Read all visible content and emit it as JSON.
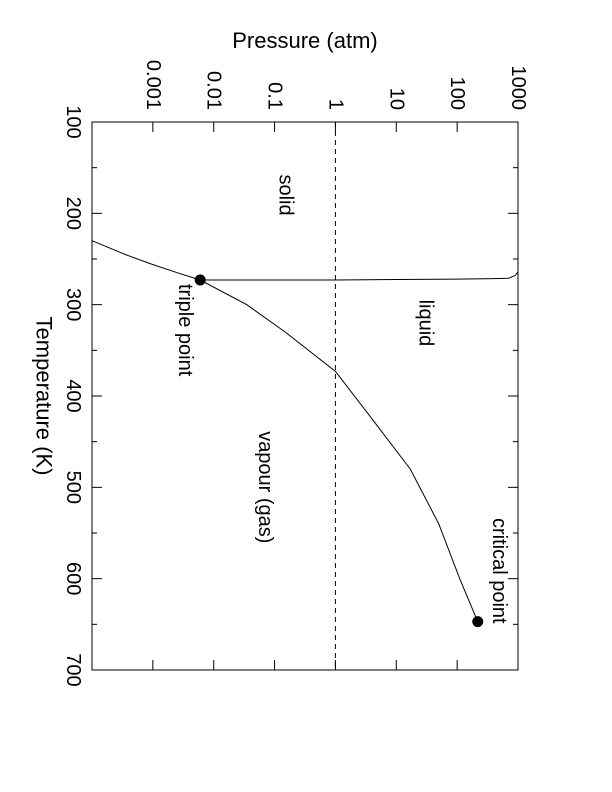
{
  "chart_data": {
    "type": "line",
    "title": "",
    "xlabel": "Temperature (K)",
    "ylabel": "Pressure (atm)",
    "xlim": [
      100,
      700
    ],
    "ylim": [
      0.0001,
      1000
    ],
    "y_scale": "log",
    "orientation": "rotated 90 degrees clockwise (temperature increases downward, pressure increases to the right)",
    "x_ticks": [
      "100",
      "200",
      "300",
      "400",
      "500",
      "600",
      "700"
    ],
    "y_ticks": [
      "0.001",
      "0.01",
      "0.1",
      "1",
      "10",
      "100",
      "1000"
    ],
    "series": [
      {
        "points": [
          [
            230,
            0.0001
          ],
          [
            245,
            0.00035
          ],
          [
            255,
            0.0009
          ],
          [
            265,
            0.0025
          ],
          [
            273,
            0.006
          ]
        ]
      },
      {
        "points": [
          [
            273,
            0.006
          ],
          [
            273,
            0.2
          ],
          [
            273,
            1
          ],
          [
            272.5,
            10
          ],
          [
            272,
            100
          ],
          [
            271.5,
            400
          ],
          [
            271,
            700
          ],
          [
            268,
            900
          ],
          [
            264,
            1000
          ]
        ]
      },
      {
        "points": [
          [
            273,
            0.006
          ],
          [
            300,
            0.035
          ],
          [
            330,
            0.15
          ],
          [
            373,
            1
          ],
          [
            420,
            3.5
          ],
          [
            480,
            17
          ],
          [
            540,
            50
          ],
          [
            600,
            110
          ],
          [
            647,
            218
          ]
        ]
      },
      {
        "points": [
          [
            100,
            1
          ],
          [
            700,
            1
          ]
        ],
        "style": "dashed"
      }
    ],
    "markers": [
      {
        "label": "triple point",
        "x": 273,
        "y": 0.006
      },
      {
        "label": "critical point",
        "x": 647,
        "y": 218
      }
    ],
    "annotations": [
      {
        "text": "solid",
        "x": 180,
        "y": 0.15
      },
      {
        "text": "liquid",
        "x": 320,
        "y": 30
      },
      {
        "text": "vapour (gas)",
        "x": 500,
        "y": 0.07
      }
    ]
  }
}
